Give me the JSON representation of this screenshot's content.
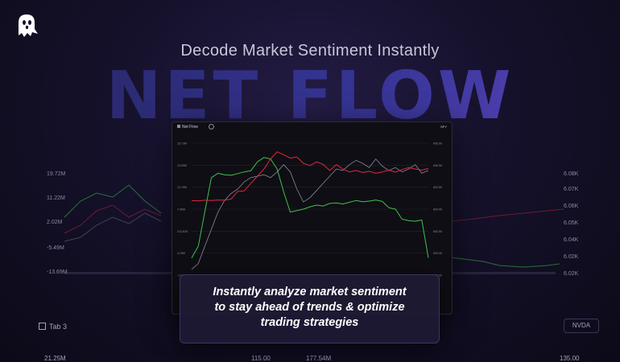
{
  "headline": "Decode Market Sentiment Instantly",
  "big_word": "NET FLOW",
  "card": {
    "title": "Net Flow",
    "ticker": "SPY"
  },
  "callout": {
    "line1": "Instantly analyze market sentiment",
    "line2": "to stay ahead of trends & optimize",
    "line3": "trading strategies"
  },
  "background": {
    "tab_label": "Tab 3",
    "ticker": "NVDA",
    "left_axis": [
      "19.72M",
      "11.22M",
      "2.02M",
      "-5.49M",
      "-13.69M"
    ],
    "right_axis": [
      "6.08K",
      "6.07K",
      "6.06K",
      "6.05K",
      "6.04K",
      "6.02K",
      "6.02K"
    ],
    "bottom_numbers": [
      "21.25M",
      "115.00",
      "177.54M",
      "135.00"
    ]
  },
  "chart_data": {
    "type": "line",
    "title": "Net Flow",
    "left_axis_ticks": [
      "16.73M",
      "13.99M",
      "12.19M",
      "7.90M",
      "213.61K",
      "4.29M",
      "-27.0M"
    ],
    "right_axis_ticks": [
      "606.50",
      "605.50",
      "604.50",
      "604.00",
      "603.50",
      "603.00",
      "602.50"
    ],
    "series": [
      {
        "color": "#e0283c",
        "values": [
          -2.0,
          -2.1,
          -1.9,
          -2.0,
          -1.8,
          -1.9,
          -1.5,
          1.2,
          1.4,
          4.0,
          6.5,
          9.0,
          12.5,
          15.0,
          14.0,
          12.8,
          13.2,
          11.0,
          10.2,
          11.5,
          10.6,
          8.5,
          10.5,
          9.0,
          8.0,
          8.5,
          7.8,
          8.2,
          7.5,
          8.0,
          8.6,
          7.9,
          8.8,
          9.5,
          9.0,
          8.6,
          9.2
        ]
      },
      {
        "color": "#3fc14a",
        "values": [
          -22.0,
          -18.0,
          -6.0,
          6.0,
          7.5,
          7.0,
          6.8,
          7.4,
          8.0,
          8.4,
          11.5,
          13.0,
          12.5,
          9.0,
          1.0,
          -6.0,
          -5.5,
          -5.0,
          -4.2,
          -3.6,
          -3.9,
          -3.0,
          -2.8,
          -3.2,
          -2.6,
          -2.0,
          -2.4,
          -2.2,
          -1.8,
          -2.3,
          -4.5,
          -5.0,
          -8.5,
          -9.0,
          -9.2,
          -8.8,
          -22.0
        ]
      },
      {
        "color": "#8a8796",
        "values": [
          -26.0,
          -24.0,
          -18.0,
          -12.0,
          -6.0,
          -2.0,
          0.5,
          2.0,
          4.5,
          6.0,
          6.5,
          7.0,
          6.0,
          8.0,
          10.5,
          8.0,
          2.0,
          -2.5,
          -1.0,
          1.5,
          4.0,
          6.5,
          9.0,
          8.5,
          10.5,
          12.0,
          11.0,
          9.5,
          12.5,
          10.0,
          8.5,
          9.5,
          8.0,
          9.0,
          10.5,
          7.5,
          8.5
        ]
      }
    ]
  }
}
